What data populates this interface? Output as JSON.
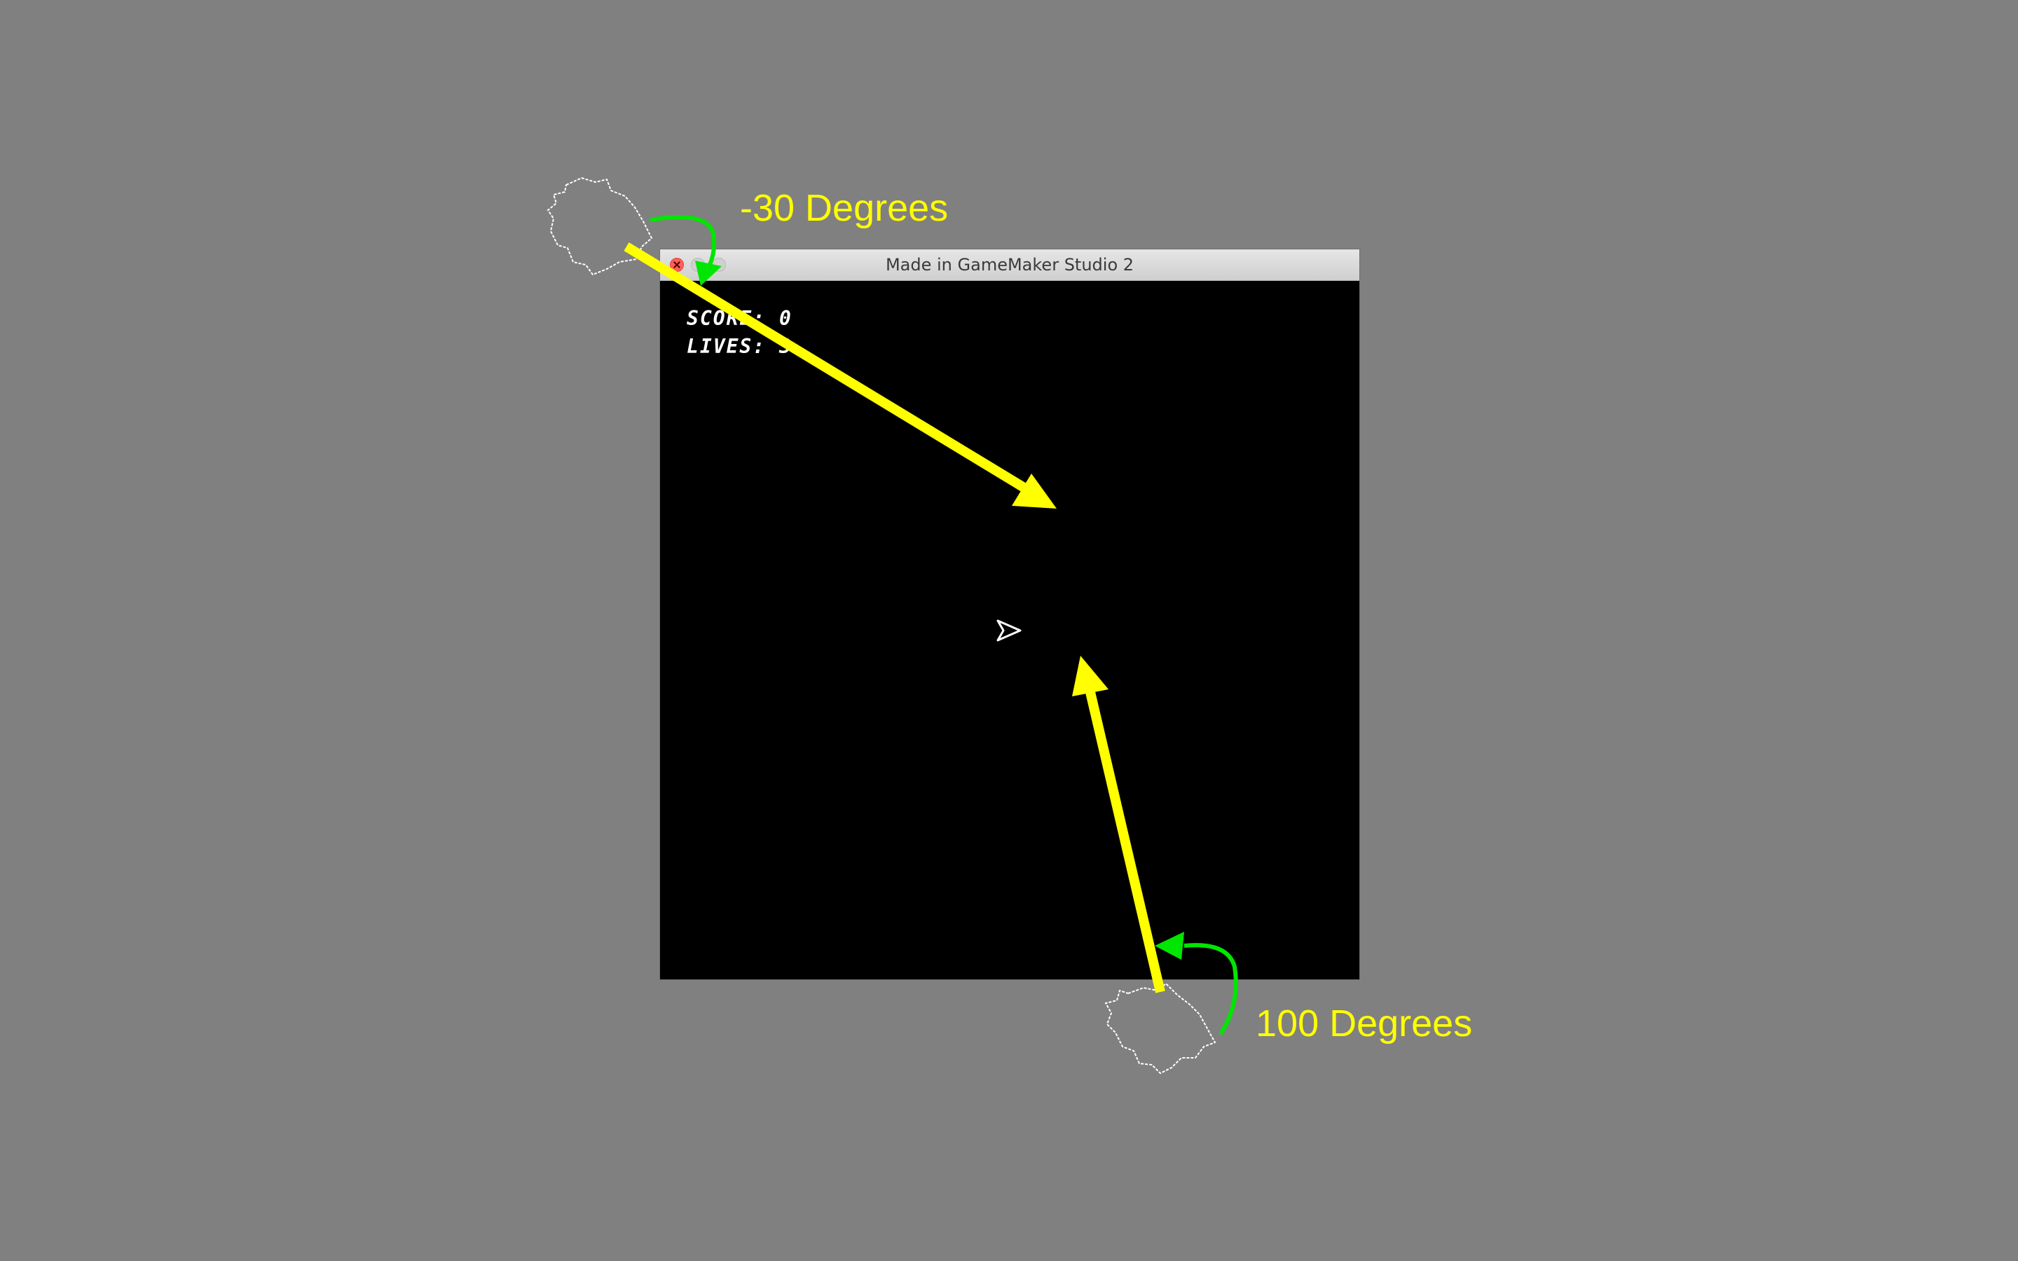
{
  "window": {
    "title": "Made in GameMaker Studio 2",
    "controls": {
      "close": "close-icon",
      "minimize": "minimize-icon",
      "zoom": "zoom-icon"
    }
  },
  "hud": {
    "score_label": "SCORE:",
    "score_value": "0",
    "lives_label": "LIVES:",
    "lives_value": "3"
  },
  "annotations": {
    "top_angle_label": "-30 Degrees",
    "bottom_angle_label": "100 Degrees",
    "arrow_color": "#ffff00",
    "rotation_arrow_color": "#00e600"
  },
  "colors": {
    "background": "#808080",
    "game_canvas": "#000000",
    "asteroid_outline": "#ffffff",
    "ship_outline": "#ffffff"
  },
  "icons": {
    "player": "ship-icon",
    "asteroids": [
      "asteroid-icon",
      "asteroid-icon"
    ]
  }
}
